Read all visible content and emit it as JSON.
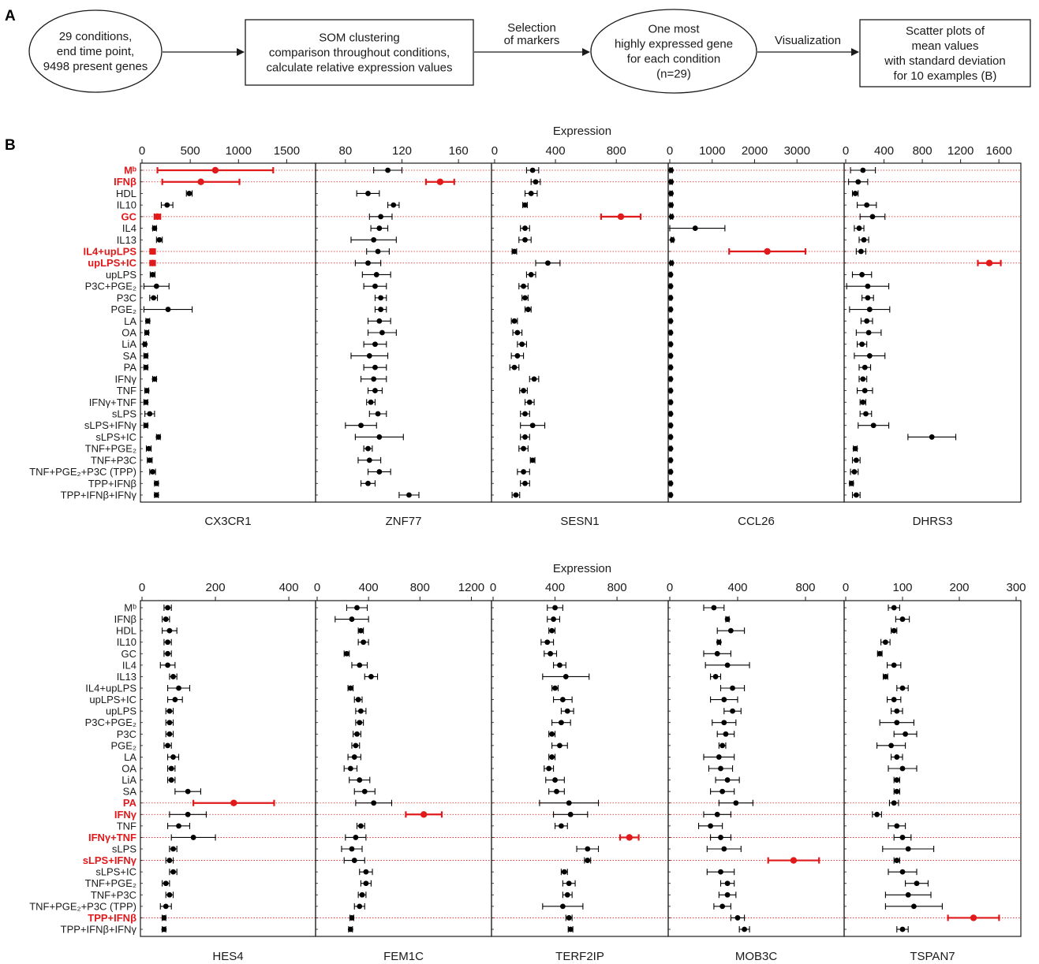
{
  "panel_labels": [
    "A",
    "B"
  ],
  "flowchart": {
    "nodes": [
      {
        "lines": [
          "29 conditions,",
          "end time point,",
          "9498 present genes"
        ]
      },
      {
        "lines": [
          "SOM clustering",
          "comparison throughout conditions,",
          "calculate relative expression values"
        ]
      },
      {
        "lines": [
          "One most",
          "highly expressed gene",
          "for each condition",
          "(n=29)"
        ]
      },
      {
        "lines": [
          "Scatter plots of",
          "mean values",
          "with standard deviation",
          "for 10 examples (B)"
        ]
      }
    ],
    "edges": [
      {
        "lines": []
      },
      {
        "lines": [
          "Selection",
          "of markers"
        ]
      },
      {
        "lines": [
          "Visualization"
        ]
      }
    ]
  },
  "chart_data": [
    {
      "type": "scatter",
      "xlabel": "Expression",
      "highlight_color": "#e0191b",
      "point_color": "#000000",
      "conditions": [
        "Mᵇ",
        "IFNβ",
        "HDL",
        "IL10",
        "GC",
        "IL4",
        "IL13",
        "IL4+upLPS",
        "upLPS+IC",
        "upLPS",
        "P3C+PGE₂",
        "P3C",
        "PGE₂",
        "LA",
        "OA",
        "LiA",
        "SA",
        "PA",
        "IFNγ",
        "TNF",
        "IFNγ+TNF",
        "sLPS",
        "sLPS+IFNγ",
        "sLPS+IC",
        "TNF+PGE₂",
        "TNF+P3C",
        "TNF+PGE₂+P3C (TPP)",
        "TPP+IFNβ",
        "TPP+IFNβ+IFNγ"
      ],
      "panels": [
        {
          "gene": "CX3CR1",
          "xlim": [
            0,
            1750
          ],
          "ticks": [
            0,
            500,
            1000,
            1500
          ],
          "highlight": [
            0,
            1,
            4,
            7,
            8
          ],
          "mean": [
            760,
            610,
            490,
            260,
            160,
            130,
            180,
            110,
            110,
            110,
            150,
            120,
            270,
            60,
            50,
            30,
            40,
            40,
            130,
            50,
            40,
            80,
            40,
            170,
            70,
            80,
            110,
            150,
            150
          ],
          "sd": [
            600,
            400,
            30,
            60,
            30,
            20,
            30,
            25,
            25,
            25,
            130,
            40,
            250,
            20,
            20,
            15,
            20,
            20,
            20,
            20,
            20,
            50,
            20,
            20,
            25,
            25,
            30,
            20,
            20
          ]
        },
        {
          "gene": "ZNF77",
          "xlim": [
            60,
            180
          ],
          "ticks": [
            80,
            120,
            160
          ],
          "highlight": [
            1
          ],
          "mean": [
            110,
            147,
            96,
            114,
            105,
            104,
            100,
            103,
            96,
            102,
            101,
            105,
            105,
            104,
            106,
            101,
            97,
            101,
            100,
            101,
            98,
            103,
            91,
            104,
            96,
            97,
            104,
            96,
            125
          ],
          "sd": [
            10,
            10,
            8,
            4,
            8,
            6,
            16,
            8,
            9,
            10,
            8,
            4,
            4,
            8,
            10,
            8,
            13,
            8,
            9,
            5,
            3,
            6,
            11,
            17,
            3,
            8,
            8,
            5,
            7
          ]
        },
        {
          "gene": "SESN1",
          "xlim": [
            -10,
            1110
          ],
          "ticks": [
            0,
            400,
            800
          ],
          "highlight": [
            4
          ],
          "mean": [
            250,
            270,
            240,
            200,
            830,
            200,
            200,
            130,
            350,
            240,
            190,
            200,
            220,
            130,
            150,
            180,
            150,
            130,
            260,
            190,
            230,
            200,
            250,
            200,
            190,
            250,
            190,
            200,
            140
          ],
          "sd": [
            40,
            30,
            40,
            15,
            130,
            30,
            40,
            15,
            80,
            30,
            30,
            20,
            20,
            20,
            30,
            30,
            40,
            30,
            30,
            25,
            30,
            30,
            80,
            30,
            30,
            15,
            40,
            30,
            25
          ]
        },
        {
          "gene": "CCL26",
          "xlim": [
            0,
            4000
          ],
          "ticks": [
            0,
            1000,
            2000,
            3000
          ],
          "highlight": [
            7
          ],
          "mean": [
            30,
            30,
            30,
            30,
            40,
            600,
            60,
            2300,
            40,
            20,
            20,
            20,
            20,
            20,
            20,
            20,
            20,
            20,
            20,
            20,
            20,
            20,
            20,
            20,
            20,
            20,
            20,
            20,
            20
          ],
          "sd": [
            30,
            30,
            30,
            30,
            30,
            700,
            30,
            900,
            30,
            20,
            20,
            20,
            20,
            20,
            20,
            20,
            20,
            20,
            20,
            20,
            20,
            20,
            20,
            20,
            20,
            20,
            20,
            20,
            20
          ]
        },
        {
          "gene": "DHRS3",
          "xlim": [
            0,
            1780
          ],
          "ticks": [
            0,
            400,
            800,
            1200,
            1600
          ],
          "highlight": [
            8
          ],
          "mean": [
            180,
            130,
            100,
            220,
            280,
            140,
            190,
            160,
            1500,
            170,
            230,
            230,
            250,
            220,
            240,
            170,
            250,
            200,
            180,
            200,
            180,
            210,
            290,
            900,
            100,
            110,
            90,
            60,
            110
          ],
          "sd": [
            130,
            100,
            30,
            100,
            130,
            50,
            50,
            50,
            120,
            100,
            220,
            60,
            210,
            60,
            130,
            50,
            160,
            60,
            40,
            80,
            30,
            60,
            160,
            250,
            20,
            40,
            40,
            20,
            40
          ]
        },
        {
          "gene": "HES4",
          "xlim": [
            0,
            460
          ],
          "ticks": [
            0,
            200,
            400
          ],
          "highlight": [
            17
          ],
          "mean": [
            70,
            65,
            75,
            70,
            70,
            70,
            85,
            100,
            90,
            75,
            75,
            75,
            70,
            85,
            80,
            80,
            125,
            250,
            125,
            100,
            140,
            85,
            75,
            85,
            65,
            75,
            65,
            60,
            60
          ],
          "sd": [
            10,
            10,
            20,
            10,
            10,
            20,
            10,
            30,
            20,
            10,
            10,
            10,
            10,
            15,
            10,
            10,
            35,
            110,
            50,
            30,
            60,
            10,
            10,
            10,
            10,
            10,
            15,
            5,
            5
          ],
          "xtext_fontsize": 15
        },
        {
          "gene": "FEM1C",
          "xlim": [
            0,
            1320
          ],
          "ticks": [
            0,
            400,
            800,
            1200
          ],
          "highlight": [
            18
          ],
          "mean": [
            310,
            270,
            340,
            360,
            230,
            330,
            420,
            260,
            320,
            340,
            330,
            310,
            300,
            290,
            260,
            330,
            370,
            440,
            830,
            340,
            300,
            270,
            290,
            380,
            380,
            350,
            330,
            270,
            260
          ],
          "sd": [
            80,
            130,
            20,
            40,
            20,
            60,
            50,
            20,
            30,
            40,
            30,
            30,
            30,
            50,
            50,
            80,
            80,
            140,
            140,
            30,
            80,
            80,
            80,
            50,
            40,
            30,
            40,
            15,
            15
          ]
        },
        {
          "gene": "TERF2IP",
          "xlim": [
            0,
            1100
          ],
          "ticks": [
            0,
            400,
            800
          ],
          "highlight": [
            20
          ],
          "mean": [
            400,
            390,
            380,
            350,
            370,
            430,
            470,
            400,
            450,
            480,
            440,
            380,
            430,
            380,
            360,
            400,
            410,
            490,
            500,
            440,
            880,
            610,
            610,
            460,
            490,
            480,
            450,
            490,
            500
          ],
          "sd": [
            50,
            40,
            20,
            40,
            40,
            40,
            150,
            20,
            60,
            40,
            60,
            20,
            50,
            20,
            30,
            60,
            50,
            190,
            110,
            40,
            60,
            70,
            20,
            20,
            40,
            30,
            130,
            20,
            15
          ]
        },
        {
          "gene": "MOB3C",
          "xlim": [
            0,
            1000
          ],
          "ticks": [
            0,
            400,
            800
          ],
          "highlight": [
            22
          ],
          "mean": [
            260,
            340,
            360,
            290,
            280,
            340,
            270,
            370,
            320,
            370,
            320,
            330,
            310,
            290,
            300,
            340,
            310,
            390,
            280,
            240,
            300,
            320,
            730,
            300,
            340,
            340,
            310,
            400,
            440
          ],
          "sd": [
            60,
            10,
            80,
            10,
            80,
            130,
            30,
            70,
            80,
            50,
            70,
            50,
            20,
            90,
            70,
            70,
            70,
            100,
            80,
            70,
            60,
            100,
            150,
            80,
            40,
            50,
            50,
            40,
            30
          ]
        },
        {
          "gene": "TSPAN7",
          "xlim": [
            0,
            300
          ],
          "ticks": [
            0,
            100,
            200,
            300
          ],
          "highlight": [
            27
          ],
          "mean": [
            85,
            100,
            85,
            70,
            60,
            85,
            70,
            100,
            85,
            90,
            90,
            105,
            80,
            90,
            100,
            90,
            90,
            85,
            55,
            90,
            100,
            110,
            90,
            100,
            125,
            110,
            120,
            225,
            100
          ],
          "sd": [
            10,
            12,
            5,
            8,
            4,
            12,
            4,
            10,
            12,
            10,
            30,
            20,
            25,
            10,
            25,
            5,
            5,
            8,
            8,
            15,
            15,
            45,
            5,
            25,
            20,
            40,
            50,
            45,
            10
          ]
        }
      ]
    }
  ]
}
